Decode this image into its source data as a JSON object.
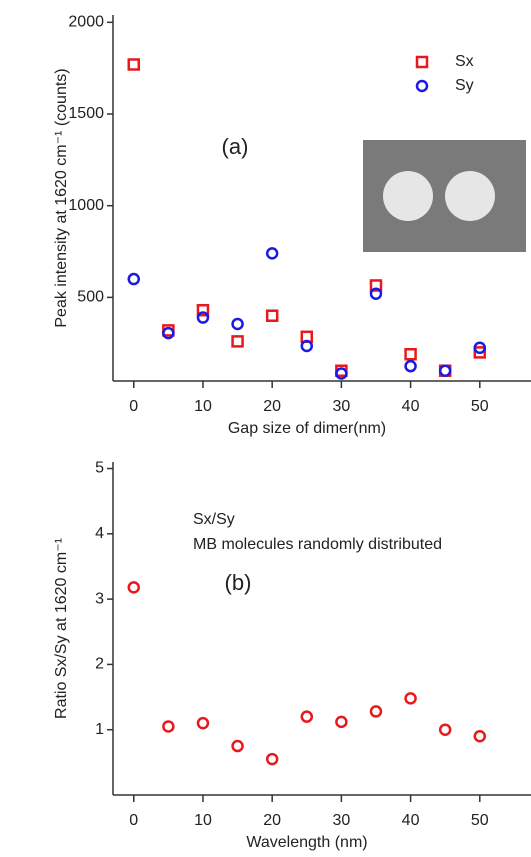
{
  "chart_data": [
    {
      "type": "scatter",
      "x_label": "Gap size of dimer(nm)",
      "y_label": "Peak intensity at 1620 cm⁻¹ (counts)",
      "panel_label": "(a)",
      "x": [
        0,
        5,
        10,
        15,
        20,
        25,
        30,
        35,
        40,
        45,
        50
      ],
      "series": [
        {
          "name": "Sx",
          "color": "#e8191c",
          "marker": "square",
          "values": [
            1770,
            320,
            430,
            260,
            400,
            285,
            100,
            565,
            190,
            100,
            200
          ]
        },
        {
          "name": "Sy",
          "color": "#1a1ae6",
          "marker": "circle",
          "values": [
            600,
            305,
            390,
            355,
            740,
            235,
            85,
            520,
            125,
            100,
            225
          ]
        }
      ],
      "xlim": [
        -3,
        57.4
      ],
      "ylim": [
        44,
        2040
      ],
      "xticks": [
        0,
        10,
        20,
        30,
        40,
        50
      ],
      "yticks": [
        500,
        1000,
        1500,
        2000
      ]
    },
    {
      "type": "scatter",
      "x_label": "Wavelength (nm)",
      "y_label": "Ratio Sx/Sy at 1620 cm⁻¹",
      "panel_label": "(b)",
      "annotations": [
        "Sx/Sy",
        "MB molecules randomly distributed"
      ],
      "x": [
        0,
        5,
        10,
        15,
        20,
        25,
        30,
        35,
        40,
        45,
        50
      ],
      "series": [
        {
          "color": "#e8191c",
          "marker": "circle",
          "values": [
            3.18,
            1.05,
            1.1,
            0.75,
            0.55,
            1.2,
            1.12,
            1.28,
            1.48,
            1.0,
            0.9
          ]
        }
      ],
      "xlim": [
        -3,
        57.4
      ],
      "ylim": [
        0,
        5.1
      ],
      "xticks": [
        0,
        10,
        20,
        30,
        40,
        50
      ],
      "yticks": [
        1,
        2,
        3,
        4,
        5
      ]
    }
  ]
}
